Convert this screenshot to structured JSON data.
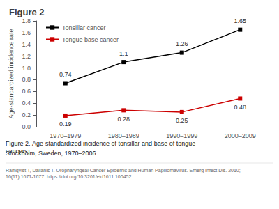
{
  "chart_data": {
    "type": "line",
    "title": "Figure 2",
    "categories": [
      "1970–1979",
      "1980–1989",
      "1990–1999",
      "2000–2009"
    ],
    "series": [
      {
        "name": "Tonsillar cancer",
        "color": "#000000",
        "marker": "square",
        "values": [
          0.74,
          1.1,
          1.26,
          1.65
        ]
      },
      {
        "name": "Tongue base cancer",
        "color": "#cc0000",
        "marker": "square",
        "values": [
          0.19,
          0.28,
          0.25,
          0.48
        ]
      }
    ],
    "ylabel": "Age-standardized incidence rate",
    "ylim": [
      0.0,
      1.8
    ],
    "yticks": [
      {
        "value": 0,
        "label": "0.0"
      },
      0.2,
      0.4,
      0.6,
      0.8,
      {
        "value": 1,
        "label": "1.0"
      },
      1.2,
      1.4,
      1.6,
      1.8
    ],
    "grid": false,
    "legend": "upper left",
    "data_labels": true,
    "annotations": [
      "Figure 2. Age-standardized incidence of tonsillar and base of tongue cancers,",
      "Stockholm, Sweden, 1970–2006.",
      "Ramqvist T, Dalianis T. Oropharyngeal Cancer Epidemic and Human Papillomavirus. Emerg Infect Dis. 2010;16(11):1671-1677. https://doi.org/10.3201/eid1611.100452"
    ]
  }
}
